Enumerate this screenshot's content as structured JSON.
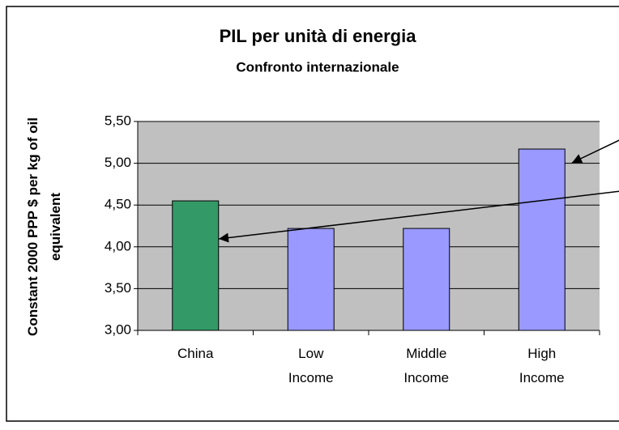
{
  "chart_data": {
    "type": "bar",
    "title": "PIL per unità di energia",
    "subtitle": "Confronto internazionale",
    "y_label": "Constant 2000 PPP $ per kg of oil equivalent",
    "categories": [
      "China",
      "Low Income",
      "Middle Income",
      "High Income"
    ],
    "values": [
      4.55,
      4.22,
      4.22,
      5.17
    ],
    "colors": [
      "#339966",
      "#9999ff",
      "#9999ff",
      "#9999ff"
    ],
    "ylim": [
      3,
      5.5
    ],
    "yticks": [
      {
        "value": 3,
        "label": "3,00"
      },
      {
        "value": 3.5,
        "label": "3,50"
      },
      {
        "value": 4,
        "label": "4,00"
      },
      {
        "value": 4.5,
        "label": "4,50"
      },
      {
        "value": 5,
        "label": "5,00"
      },
      {
        "value": 5.5,
        "label": "5,50"
      }
    ],
    "grid": true
  }
}
